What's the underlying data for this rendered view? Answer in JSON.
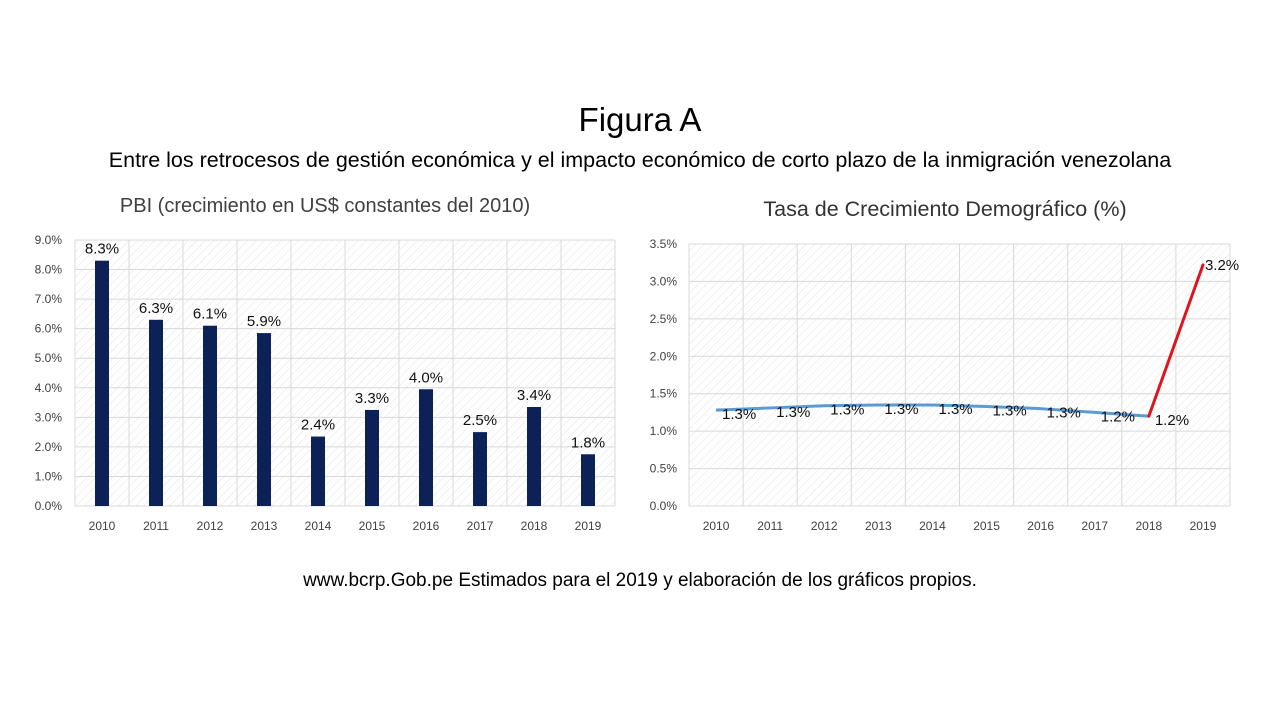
{
  "figure": {
    "title": "Figura A",
    "subtitle": "Entre los retrocesos de gestión económica y el impacto económico de corto plazo de la inmigración venezolana"
  },
  "source": "www.bcrp.Gob.pe Estimados para el 2019 y elaboración de los gráficos propios.",
  "colors": {
    "bar": "#0b2157",
    "line_main": "#5b9bd5",
    "line_highlight": "#e0141e",
    "grid": "#d9d9d9",
    "plot_hatch": "#e3e3e3"
  },
  "chart_data": [
    {
      "type": "bar",
      "title": "PBI  (crecimiento en US$ constantes del 2010)",
      "categories": [
        "2010",
        "2011",
        "2012",
        "2013",
        "2014",
        "2015",
        "2016",
        "2017",
        "2018",
        "2019"
      ],
      "values": [
        8.3,
        6.3,
        6.1,
        5.85,
        2.35,
        3.25,
        3.95,
        2.5,
        3.35,
        1.75
      ],
      "data_labels": [
        "8.3%",
        "6.3%",
        "6.1%",
        "5.9%",
        "2.4%",
        "3.3%",
        "4.0%",
        "2.5%",
        "3.4%",
        "1.8%"
      ],
      "ylim": [
        0,
        9
      ],
      "yticks": [
        "0.0%",
        "1.0%",
        "2.0%",
        "3.0%",
        "4.0%",
        "5.0%",
        "6.0%",
        "7.0%",
        "8.0%",
        "9.0%"
      ],
      "xlabel": "",
      "ylabel": "",
      "grid": true,
      "legend": "none"
    },
    {
      "type": "line",
      "title": "Tasa de Crecimiento Demográfico (%)",
      "categories": [
        "2010",
        "2011",
        "2012",
        "2013",
        "2014",
        "2015",
        "2016",
        "2017",
        "2018",
        "2019"
      ],
      "values": [
        1.28,
        1.31,
        1.34,
        1.35,
        1.35,
        1.33,
        1.3,
        1.25,
        1.2,
        3.22
      ],
      "data_labels": [
        "1.3%",
        "1.3%",
        "1.3%",
        "1.3%",
        "1.3%",
        "1.3%",
        "1.3%",
        "1.2%",
        "1.2%",
        "3.2%"
      ],
      "highlight_last_segment": true,
      "ylim": [
        0,
        3.5
      ],
      "yticks": [
        "0.0%",
        "0.5%",
        "1.0%",
        "1.5%",
        "2.0%",
        "2.5%",
        "3.0%",
        "3.5%"
      ],
      "xlabel": "",
      "ylabel": "",
      "grid": true,
      "legend": "none"
    }
  ]
}
